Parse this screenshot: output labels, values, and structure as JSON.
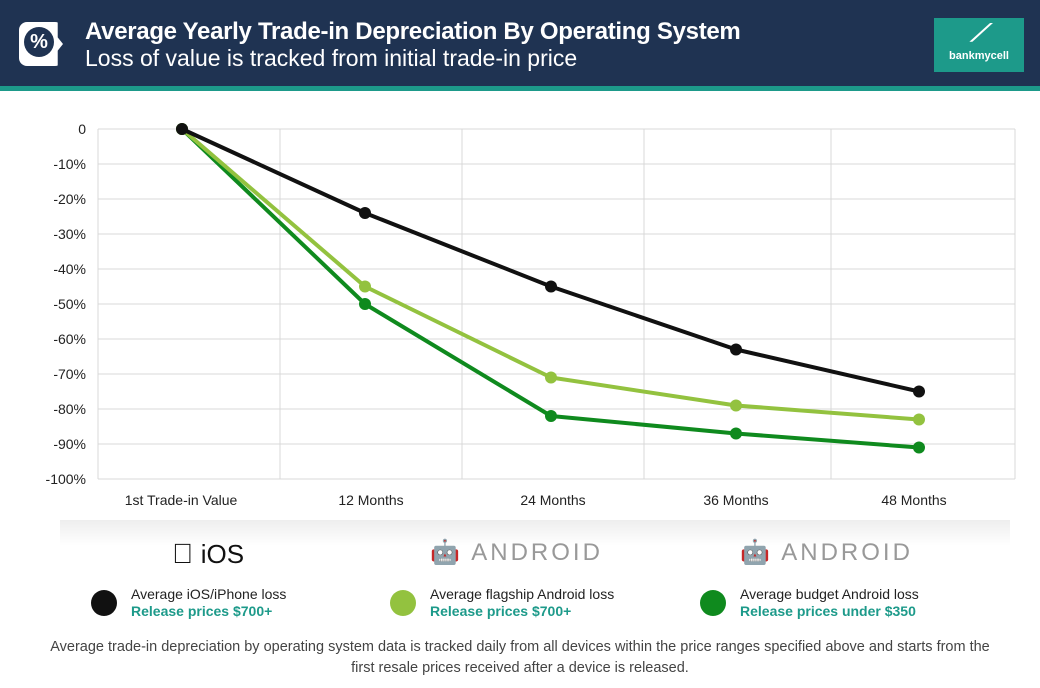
{
  "header": {
    "title": "Average Yearly Trade-in Depreciation By Operating System",
    "subtitle": "Loss of value is tracked from initial trade-in price",
    "icon": "percent-icon",
    "logo_text": "bankmycell"
  },
  "colors": {
    "header_bg": "#1f3352",
    "accent": "#1d9a8a",
    "ios": "#111111",
    "flagship": "#93c23f",
    "budget": "#0f8a1e"
  },
  "chart_data": {
    "type": "line",
    "categories": [
      "1st Trade-in Value",
      "12 Months",
      "24 Months",
      "36 Months",
      "48 Months"
    ],
    "yticks": [
      "0",
      "-10%",
      "-20%",
      "-30%",
      "-40%",
      "-50%",
      "-60%",
      "-70%",
      "-80%",
      "-90%",
      "-100%"
    ],
    "ylim": [
      -100,
      0
    ],
    "grid": true,
    "series": [
      {
        "name": "Average iOS/iPhone loss",
        "color": "#111111",
        "values": [
          0,
          -24,
          -45,
          -63,
          -75
        ]
      },
      {
        "name": "Average flagship Android loss",
        "color": "#93c23f",
        "values": [
          0,
          -45,
          -71,
          -79,
          -83
        ]
      },
      {
        "name": "Average budget Android loss",
        "color": "#0f8a1e",
        "values": [
          0,
          -50,
          -82,
          -87,
          -91
        ]
      }
    ]
  },
  "legend": [
    {
      "os": "iOS",
      "label": "Average iOS/iPhone loss",
      "sub": "Release prices $700+",
      "color": "#111111"
    },
    {
      "os": "ANDROID",
      "label": "Average flagship Android loss",
      "sub": "Release prices $700+",
      "color": "#93c23f"
    },
    {
      "os": "ANDROID",
      "label": "Average budget Android loss",
      "sub": "Release prices under $350",
      "color": "#0f8a1e"
    }
  ],
  "footnote": "Average trade-in depreciation by operating system data is tracked daily from all devices within the price ranges specified above and starts from the first resale prices received after a device is released."
}
